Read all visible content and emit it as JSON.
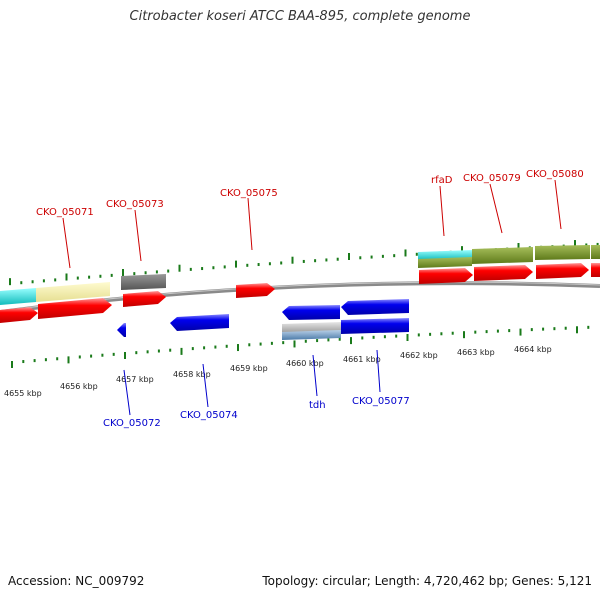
{
  "title": "Citrobacter koseri ATCC BAA-895, complete genome",
  "footer": {
    "accession": "Accession: NC_009792",
    "summary": "Topology: circular; Length: 4,720,462 bp; Genes: 5,121"
  },
  "colors": {
    "forward_label": "#cc0000",
    "reverse_label": "#0000cc",
    "cds_forward": "#ff0000",
    "cds_reverse": "#0000ee",
    "backbone": "#888888",
    "ticks": "#1a7a1a"
  },
  "scale_labels": [
    "4655 kbp",
    "4656 kbp",
    "4657 kbp",
    "4658 kbp",
    "4659 kbp",
    "4660 kbp",
    "4661 kbp",
    "4662 kbp",
    "4663 kbp",
    "4664 kbp"
  ],
  "forward_genes": [
    {
      "name": "CKO_05071"
    },
    {
      "name": "CKO_05073"
    },
    {
      "name": "CKO_05075"
    },
    {
      "name": "rfaD"
    },
    {
      "name": "CKO_05079"
    },
    {
      "name": "CKO_05080"
    }
  ],
  "reverse_genes": [
    {
      "name": "CKO_05072"
    },
    {
      "name": "CKO_05074"
    },
    {
      "name": "tdh"
    },
    {
      "name": "CKO_05077"
    }
  ]
}
